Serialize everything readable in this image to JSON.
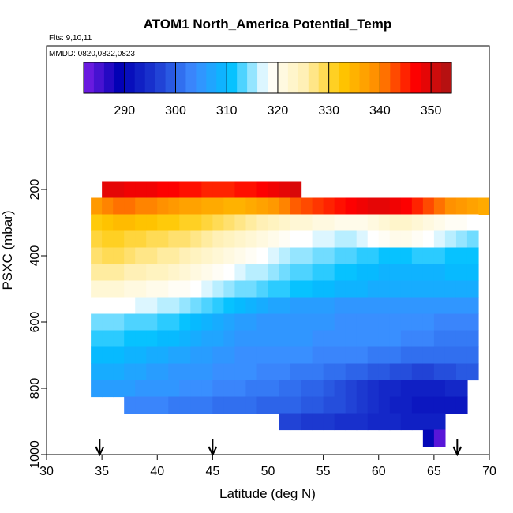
{
  "chart_data": {
    "type": "heatmap",
    "title": "ATOM1 North_America Potential_Temp",
    "subtitle_flights": "Flts: 9,10,11",
    "subtitle_dates": "MMDD: 0820,0822,0823",
    "xlabel": "Latitude (deg N)",
    "ylabel": "PSXC (mbar)",
    "xlim": [
      30,
      70
    ],
    "ylim": [
      1000,
      100
    ],
    "x_ticks": [
      "30",
      "35",
      "40",
      "45",
      "50",
      "55",
      "60",
      "65",
      "70"
    ],
    "x_tick_values": [
      30,
      35,
      40,
      45,
      50,
      55,
      60,
      65,
      70
    ],
    "y_ticks": [
      "200",
      "400",
      "600",
      "800",
      "1000"
    ],
    "y_tick_values": [
      200,
      400,
      600,
      800,
      1000
    ],
    "colorbar": {
      "range": [
        282,
        354
      ],
      "tick_labels": [
        "290",
        "300",
        "310",
        "320",
        "330",
        "340",
        "350"
      ],
      "tick_values": [
        290,
        300,
        310,
        320,
        330,
        340,
        350
      ],
      "colors": [
        "#7a1ee6",
        "#0000b4",
        "#1e3cd2",
        "#3c8cff",
        "#00c0ff",
        "#ffffff",
        "#fff0b4",
        "#ffc800",
        "#ff8c00",
        "#ff0000",
        "#aa1414"
      ]
    },
    "flight_markers_lat": [
      34.8,
      45.0,
      67.1
    ],
    "rows": [
      {
        "p": 200,
        "lat_min": 35,
        "lat_max": 53,
        "theta": [
          349,
          349,
          348,
          348,
          348,
          347,
          347,
          346,
          346,
          345,
          345,
          345,
          346,
          346,
          347,
          348,
          349,
          350
        ]
      },
      {
        "p": 250,
        "lat_min": 34,
        "lat_max": 70,
        "theta": [
          338,
          340,
          341,
          341,
          340,
          340,
          339,
          338,
          337,
          337,
          336,
          336,
          335,
          335,
          336,
          337,
          338,
          340,
          342,
          343,
          344,
          345,
          346,
          347,
          348,
          349,
          349,
          348,
          347,
          345,
          343,
          341,
          339,
          338,
          337,
          336
        ]
      },
      {
        "p": 300,
        "lat_min": 34,
        "lat_max": 69,
        "theta": [
          332,
          333,
          334,
          334,
          333,
          333,
          332,
          332,
          331,
          331,
          330,
          329,
          328,
          327,
          326,
          325,
          324,
          323,
          322,
          322,
          321,
          321,
          320,
          320,
          320,
          321,
          322,
          323,
          323,
          322,
          321,
          320,
          319,
          319,
          318
        ]
      },
      {
        "p": 350,
        "lat_min": 34,
        "lat_max": 69,
        "theta": [
          330,
          331,
          331,
          330,
          330,
          329,
          329,
          328,
          328,
          327,
          326,
          325,
          324,
          323,
          322,
          321,
          320,
          319,
          318,
          318,
          317,
          317,
          316,
          316,
          317,
          318,
          319,
          320,
          320,
          319,
          318,
          317,
          316,
          315,
          314
        ]
      },
      {
        "p": 400,
        "lat_min": 34,
        "lat_max": 69,
        "theta": [
          328,
          329,
          329,
          328,
          327,
          327,
          326,
          326,
          325,
          324,
          323,
          322,
          321,
          320,
          319,
          318,
          317,
          316,
          315,
          315,
          314,
          314,
          313,
          313,
          312,
          312,
          311,
          311,
          311,
          312,
          312,
          312,
          311,
          311,
          311
        ]
      },
      {
        "p": 450,
        "lat_min": 34,
        "lat_max": 69,
        "theta": [
          326,
          326,
          326,
          325,
          325,
          324,
          324,
          323,
          322,
          321,
          320,
          319,
          318,
          317,
          316,
          316,
          315,
          314,
          313,
          313,
          312,
          312,
          311,
          311,
          310,
          310,
          309,
          309,
          309,
          309,
          309,
          309,
          310,
          310,
          310
        ]
      },
      {
        "p": 500,
        "lat_min": 34,
        "lat_max": 69,
        "theta": [
          322,
          322,
          322,
          321,
          321,
          320,
          320,
          319,
          319,
          318,
          317,
          316,
          315,
          314,
          314,
          313,
          312,
          312,
          311,
          311,
          310,
          310,
          309,
          309,
          309,
          308,
          308,
          308,
          308,
          308,
          308,
          308,
          308,
          308,
          308
        ]
      },
      {
        "p": 550,
        "lat_min": 34,
        "lat_max": 69,
        "theta": [
          318,
          318,
          318,
          318,
          317,
          317,
          316,
          316,
          315,
          314,
          313,
          312,
          311,
          310,
          309,
          308,
          307,
          307,
          306,
          306,
          306,
          306,
          305,
          305,
          305,
          305,
          305,
          305,
          305,
          305,
          305,
          305,
          305,
          305,
          305
        ]
      },
      {
        "p": 600,
        "lat_min": 34,
        "lat_max": 69,
        "theta": [
          314,
          314,
          314,
          313,
          313,
          313,
          312,
          312,
          311,
          310,
          309,
          308,
          307,
          306,
          306,
          305,
          305,
          305,
          305,
          305,
          305,
          305,
          304,
          304,
          304,
          304,
          304,
          304,
          304,
          304,
          304,
          303,
          303,
          303,
          303
        ]
      },
      {
        "p": 650,
        "lat_min": 34,
        "lat_max": 69,
        "theta": [
          312,
          312,
          312,
          311,
          311,
          311,
          310,
          310,
          309,
          308,
          307,
          307,
          306,
          305,
          305,
          305,
          305,
          305,
          305,
          305,
          304,
          304,
          304,
          304,
          304,
          304,
          304,
          304,
          303,
          303,
          303,
          302,
          302,
          302,
          302
        ]
      },
      {
        "p": 700,
        "lat_min": 34,
        "lat_max": 69,
        "theta": [
          310,
          310,
          310,
          309,
          309,
          308,
          308,
          307,
          307,
          306,
          306,
          305,
          305,
          304,
          304,
          304,
          304,
          304,
          304,
          304,
          303,
          303,
          303,
          303,
          303,
          302,
          302,
          302,
          301,
          301,
          301,
          301,
          301,
          301,
          301
        ]
      },
      {
        "p": 750,
        "lat_min": 34,
        "lat_max": 69,
        "theta": [
          308,
          308,
          308,
          307,
          307,
          306,
          306,
          305,
          305,
          305,
          305,
          304,
          304,
          304,
          304,
          303,
          303,
          303,
          302,
          302,
          302,
          301,
          301,
          300,
          300,
          299,
          299,
          298,
          298,
          297,
          297,
          298,
          298,
          299,
          299
        ]
      },
      {
        "p": 800,
        "lat_min": 34,
        "lat_max": 68,
        "theta": [
          306,
          306,
          306,
          306,
          305,
          305,
          305,
          305,
          304,
          304,
          304,
          303,
          303,
          303,
          302,
          302,
          302,
          301,
          301,
          300,
          300,
          299,
          298,
          297,
          296,
          295,
          294,
          294,
          293,
          293,
          293,
          293,
          294,
          294
        ]
      },
      {
        "p": 850,
        "lat_min": 37,
        "lat_max": 68,
        "theta": [
          303,
          303,
          303,
          303,
          302,
          302,
          302,
          302,
          301,
          301,
          301,
          301,
          300,
          300,
          300,
          300,
          299,
          299,
          298,
          298,
          297,
          296,
          295,
          294,
          293,
          293,
          292,
          292,
          292,
          292,
          292
        ]
      },
      {
        "p": 900,
        "lat_min": 51,
        "lat_max": 66,
        "theta": [
          297,
          297,
          296,
          296,
          296,
          295,
          295,
          295,
          294,
          294,
          294,
          293,
          293,
          293,
          293
        ]
      },
      {
        "p": 950,
        "lat_min": 64,
        "lat_max": 66,
        "theta": [
          290,
          284
        ]
      }
    ]
  }
}
